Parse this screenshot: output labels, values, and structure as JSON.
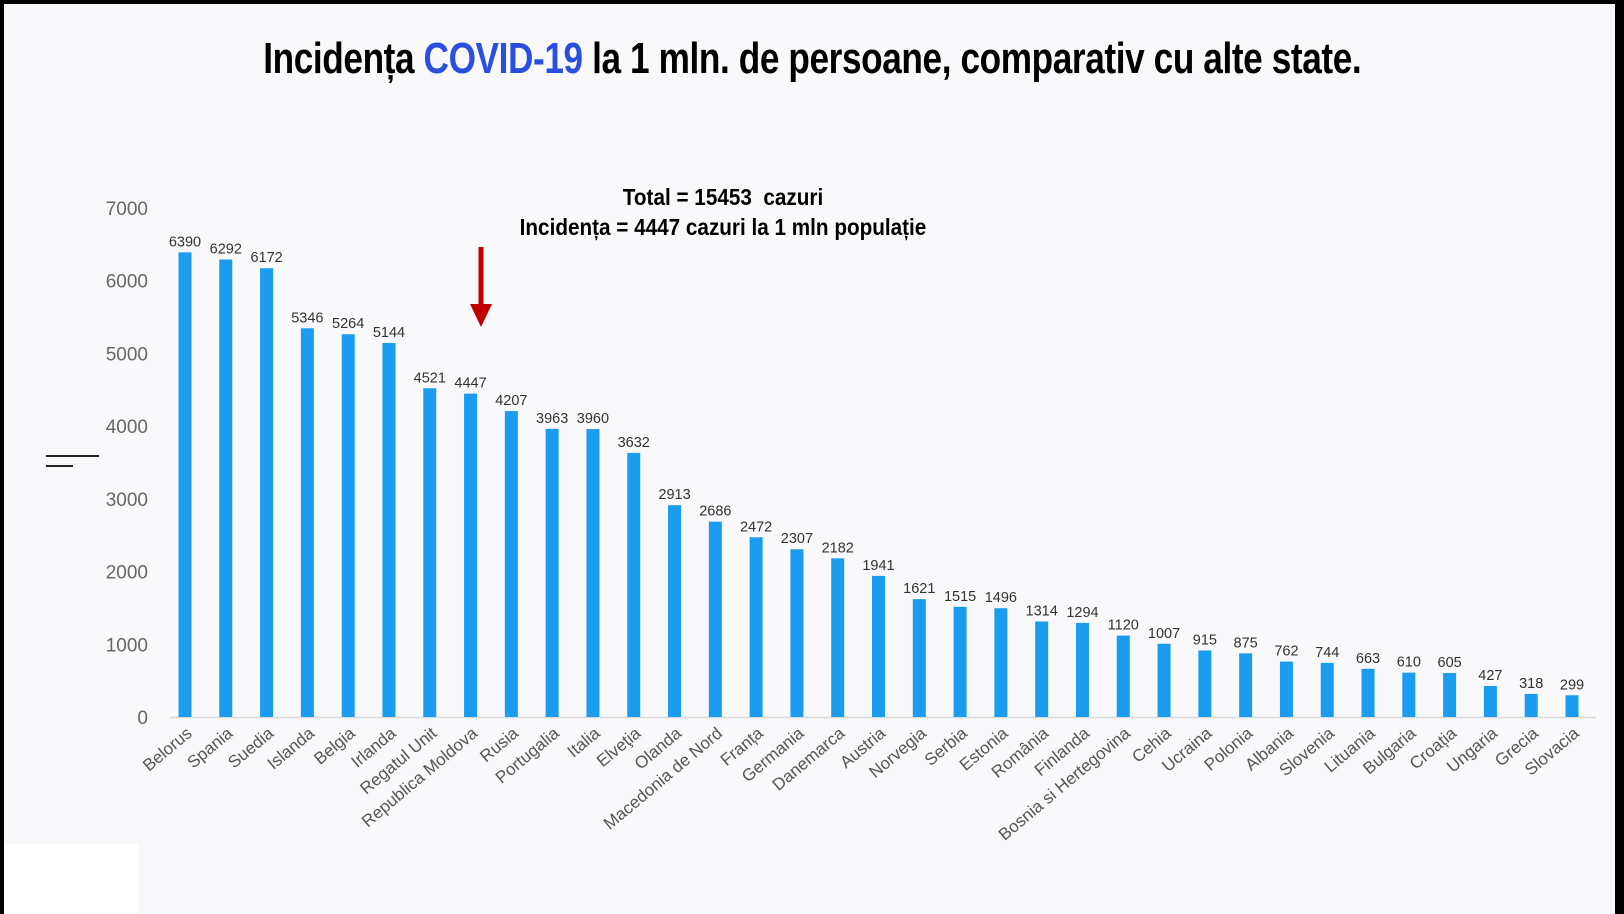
{
  "title": {
    "prefix": "Incidența ",
    "highlight": "COVID-19",
    "suffix": " la 1 mln. de persoane, comparativ cu alte state."
  },
  "annotation": {
    "line1": "Total = 15453  cazuri",
    "line2": "Incidența = 4447 cazuri la 1 mln populație",
    "arrow_target": "Republica Moldova"
  },
  "colors": {
    "bar": "#1a9cf0",
    "highlight": "#2a4fe0",
    "arrow": "#c00000"
  },
  "chart_data": {
    "type": "bar",
    "title": "Incidența COVID-19 la 1 mln. de persoane, comparativ cu alte state.",
    "xlabel": "",
    "ylabel": "",
    "ylim": [
      0,
      7000
    ],
    "yticks": [
      "0",
      "1000",
      "2000",
      "3000",
      "4000",
      "5000",
      "6000",
      "7000"
    ],
    "grid": false,
    "categories": [
      "Belorus",
      "Spania",
      "Suedia",
      "Islanda",
      "Belgia",
      "Irlanda",
      "Regatul Unit",
      "Republica Moldova",
      "Rusia",
      "Portugalia",
      "Italia",
      "Elveţia",
      "Olanda",
      "Macedonia de Nord",
      "Franța",
      "Germania",
      "Danemarca",
      "Austria",
      "Norvegia",
      "Serbia",
      "Estonia",
      "România",
      "Finlanda",
      "Bosnia si Hertegovina",
      "Cehia",
      "Ucraina",
      "Polonia",
      "Albania",
      "Slovenia",
      "Lituania",
      "Bulgaria",
      "Croația",
      "Ungaria",
      "Grecia",
      "Slovacia"
    ],
    "values": [
      6390,
      6292,
      6172,
      5346,
      5264,
      5144,
      4521,
      4447,
      4207,
      3963,
      3960,
      3632,
      2913,
      2686,
      2472,
      2307,
      2182,
      1941,
      1621,
      1515,
      1496,
      1314,
      1294,
      1120,
      1007,
      915,
      875,
      762,
      744,
      663,
      610,
      605,
      427,
      318,
      299
    ]
  }
}
